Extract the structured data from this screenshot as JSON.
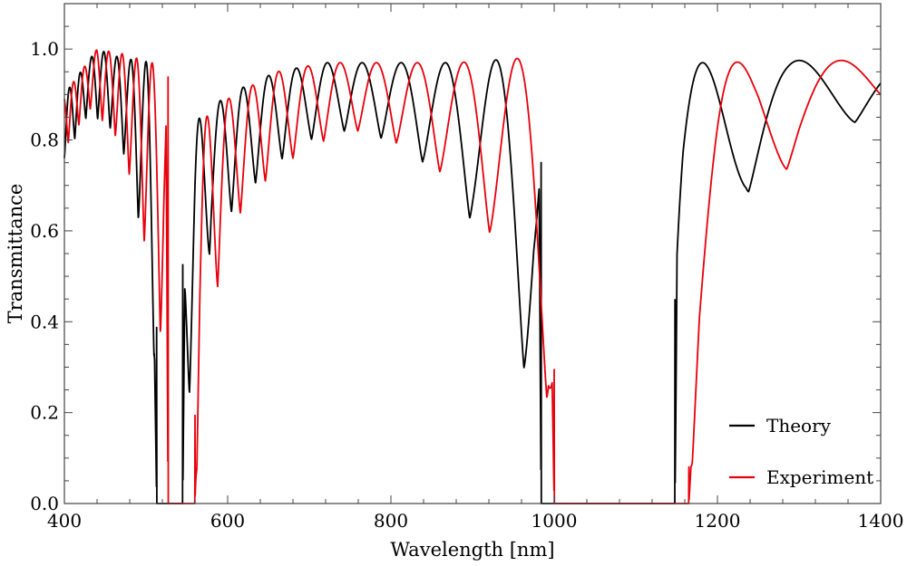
{
  "chart_data": {
    "type": "line",
    "title": "",
    "xlabel": "Wavelength [nm]",
    "ylabel": "Transmittance",
    "xlim": [
      400,
      1400
    ],
    "ylim": [
      0,
      1.1
    ],
    "x_ticks": [
      400,
      600,
      800,
      1000,
      1200,
      1400
    ],
    "x_tick_labels": [
      "400",
      "600",
      "800",
      "1000",
      "1200",
      "1400"
    ],
    "y_ticks": [
      0,
      0.2,
      0.4,
      0.6,
      0.8,
      1.0
    ],
    "y_tick_labels": [
      "0.0",
      "0.2",
      "0.4",
      "0.6",
      "0.8",
      "1.0"
    ],
    "grid": false,
    "legend_position": "bottom-right",
    "series": [
      {
        "name": "Theory",
        "color": "#000000",
        "lower_envelope": [
          [
            400,
            0.76
          ],
          [
            430,
            0.86
          ],
          [
            460,
            0.82
          ],
          [
            480,
            0.74
          ],
          [
            495,
            0.58
          ],
          [
            505,
            0.4
          ],
          [
            510,
            0.32
          ],
          [
            513,
            0.0
          ],
          [
            545,
            0.0
          ],
          [
            548,
            0.2
          ],
          [
            560,
            0.3
          ],
          [
            580,
            0.58
          ],
          [
            620,
            0.68
          ],
          [
            660,
            0.75
          ],
          [
            700,
            0.8
          ],
          [
            740,
            0.82
          ],
          [
            780,
            0.81
          ],
          [
            820,
            0.78
          ],
          [
            860,
            0.72
          ],
          [
            900,
            0.62
          ],
          [
            940,
            0.45
          ],
          [
            975,
            0.22
          ],
          [
            984,
            0.0
          ],
          [
            1148,
            0.0
          ],
          [
            1158,
            0.28
          ],
          [
            1195,
            0.52
          ],
          [
            1235,
            0.68
          ],
          [
            1280,
            0.77
          ],
          [
            1340,
            0.82
          ],
          [
            1400,
            0.86
          ]
        ],
        "upper_envelope": [
          [
            400,
            0.9
          ],
          [
            440,
            1.0
          ],
          [
            470,
            0.98
          ],
          [
            510,
            0.97
          ],
          [
            545,
            0.6
          ],
          [
            560,
            0.84
          ],
          [
            600,
            0.9
          ],
          [
            660,
            0.95
          ],
          [
            720,
            0.97
          ],
          [
            800,
            0.97
          ],
          [
            880,
            0.97
          ],
          [
            960,
            0.98
          ],
          [
            980,
            1.0
          ],
          [
            1160,
            0.97
          ],
          [
            1200,
            0.97
          ],
          [
            1300,
            0.975
          ],
          [
            1400,
            0.975
          ]
        ],
        "stop_bands_nm": [
          [
            513,
            545
          ],
          [
            984,
            1148
          ]
        ]
      },
      {
        "name": "Experiment",
        "color": "#e8000b",
        "lower_envelope": [
          [
            400,
            0.78
          ],
          [
            430,
            0.87
          ],
          [
            460,
            0.82
          ],
          [
            480,
            0.72
          ],
          [
            500,
            0.56
          ],
          [
            515,
            0.42
          ],
          [
            522,
            0.3
          ],
          [
            527,
            0.0
          ],
          [
            560,
            0.0
          ],
          [
            566,
            0.22
          ],
          [
            580,
            0.4
          ],
          [
            600,
            0.6
          ],
          [
            640,
            0.7
          ],
          [
            680,
            0.76
          ],
          [
            720,
            0.8
          ],
          [
            760,
            0.82
          ],
          [
            800,
            0.8
          ],
          [
            840,
            0.76
          ],
          [
            880,
            0.7
          ],
          [
            920,
            0.6
          ],
          [
            960,
            0.45
          ],
          [
            993,
            0.22
          ],
          [
            1000,
            0.0
          ],
          [
            1165,
            0.0
          ],
          [
            1178,
            0.28
          ],
          [
            1218,
            0.53
          ],
          [
            1250,
            0.68
          ],
          [
            1300,
            0.76
          ],
          [
            1350,
            0.8
          ],
          [
            1400,
            0.84
          ]
        ],
        "upper_envelope": [
          [
            400,
            0.9
          ],
          [
            440,
            1.0
          ],
          [
            470,
            0.99
          ],
          [
            525,
            0.96
          ],
          [
            560,
            0.83
          ],
          [
            600,
            0.89
          ],
          [
            660,
            0.95
          ],
          [
            720,
            0.97
          ],
          [
            800,
            0.97
          ],
          [
            880,
            0.97
          ],
          [
            960,
            0.98
          ],
          [
            990,
            1.0
          ],
          [
            1175,
            0.95
          ],
          [
            1200,
            0.97
          ],
          [
            1300,
            0.975
          ],
          [
            1400,
            0.975
          ]
        ],
        "stop_bands_nm": [
          [
            527,
            560
          ],
          [
            1000,
            1165
          ]
        ]
      }
    ]
  }
}
